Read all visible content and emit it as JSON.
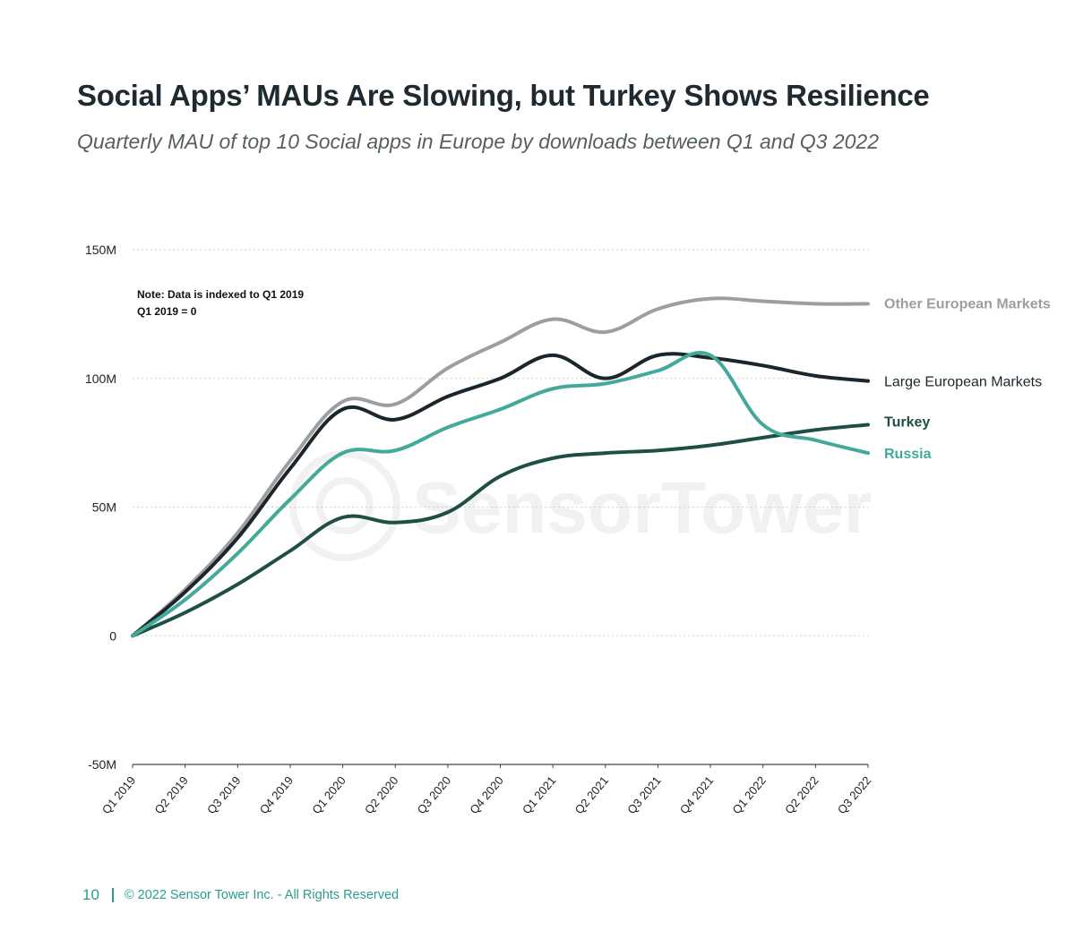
{
  "header": {
    "title": "Social Apps’ MAUs Are Slowing, but Turkey Shows Resilience",
    "subtitle": "Quarterly MAU of top 10 Social apps in Europe by downloads between Q1 and Q3 2022"
  },
  "watermark": "SensorTower",
  "footer": {
    "page_number": "10",
    "copyright": "© 2022 Sensor Tower Inc. - All Rights Reserved"
  },
  "chart_data": {
    "type": "line",
    "title": "Social Apps’ MAUs Are Slowing, but Turkey Shows Resilience",
    "xlabel": "",
    "ylabel": "",
    "ylim": [
      -50,
      150
    ],
    "y_ticks": [
      -50,
      0,
      50,
      100,
      150
    ],
    "y_tick_labels": [
      "-50M",
      "0",
      "50M",
      "100M",
      "150M"
    ],
    "grid": true,
    "note_lines": [
      "Note: Data is indexed to Q1 2019",
      "Q1 2019 = 0"
    ],
    "categories": [
      "Q1 2019",
      "Q2 2019",
      "Q3 2019",
      "Q4 2019",
      "Q1 2020",
      "Q2 2020",
      "Q3 2020",
      "Q4 2020",
      "Q1 2021",
      "Q2 2021",
      "Q3 2021",
      "Q4 2021",
      "Q1 2022",
      "Q2 2022",
      "Q3 2022"
    ],
    "series": [
      {
        "name": "Other European Markets",
        "color": "#9e9e9e",
        "values": [
          0,
          18,
          40,
          68,
          91,
          90,
          104,
          114,
          123,
          118,
          127,
          131,
          130,
          129,
          129
        ]
      },
      {
        "name": "Large European Markets",
        "color": "#1b262c",
        "values": [
          0,
          17,
          38,
          65,
          88,
          84,
          93,
          100,
          109,
          100,
          109,
          108,
          105,
          101,
          99
        ]
      },
      {
        "name": "Turkey",
        "color": "#1f4e46",
        "values": [
          0,
          9,
          20,
          33,
          46,
          44,
          48,
          62,
          69,
          71,
          72,
          74,
          77,
          80,
          82
        ]
      },
      {
        "name": "Russia",
        "color": "#43a99a",
        "values": [
          0,
          14,
          32,
          53,
          71,
          72,
          81,
          88,
          96,
          98,
          103,
          109,
          82,
          76,
          71
        ]
      }
    ]
  }
}
